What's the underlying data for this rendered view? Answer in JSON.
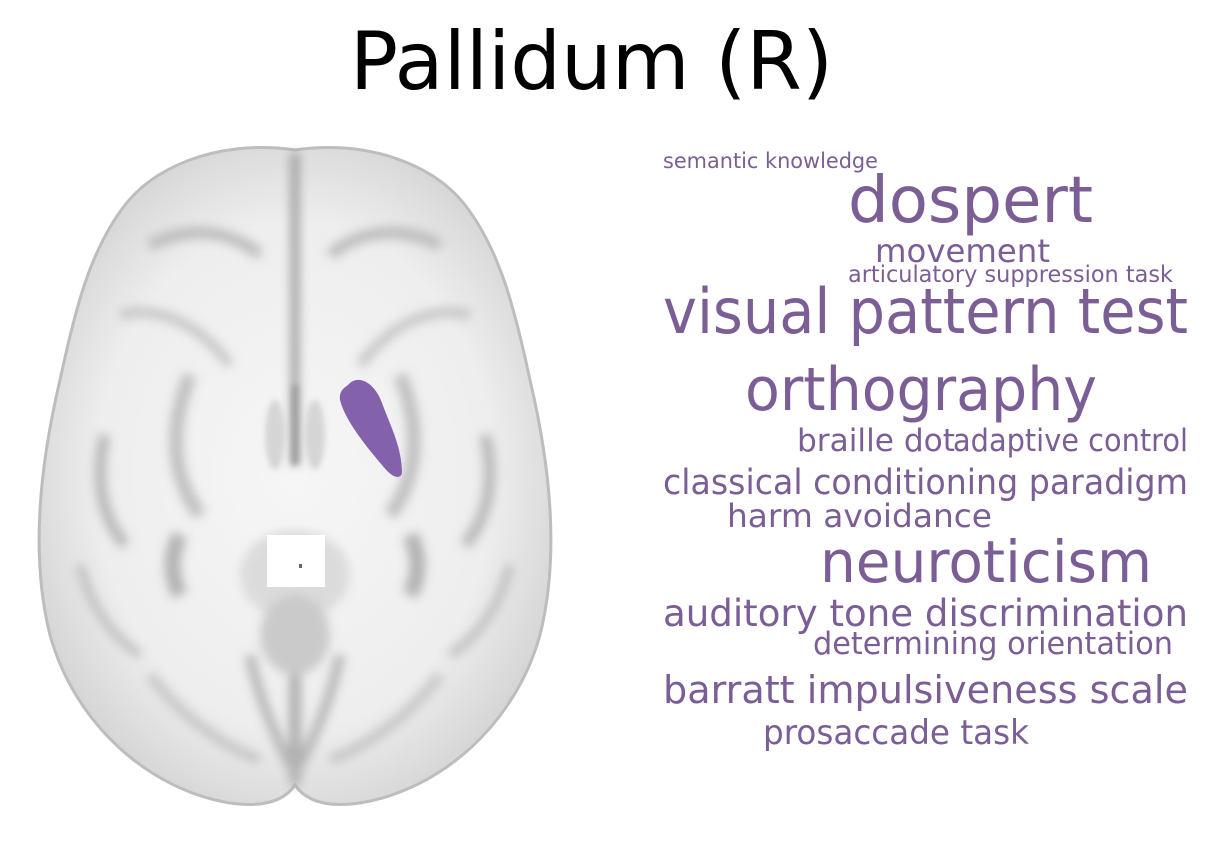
{
  "figure": {
    "title": "Pallidum (R)",
    "region_color": "#8461ab",
    "word_color": "#7b5e95"
  },
  "word_cloud": [
    {
      "text": "semantic knowledge"
    },
    {
      "text": "dospert"
    },
    {
      "text": "movement"
    },
    {
      "text": "articulatory suppression task"
    },
    {
      "text": "visual pattern test"
    },
    {
      "text": "orthography"
    },
    {
      "text": "braille dot"
    },
    {
      "text": "adaptive control"
    },
    {
      "text": "classical conditioning paradigm"
    },
    {
      "text": "harm avoidance"
    },
    {
      "text": "neuroticism"
    },
    {
      "text": "auditory tone discrimination"
    },
    {
      "text": "determining orientation"
    },
    {
      "text": "barratt impulsiveness scale"
    },
    {
      "text": "prosaccade task"
    }
  ]
}
